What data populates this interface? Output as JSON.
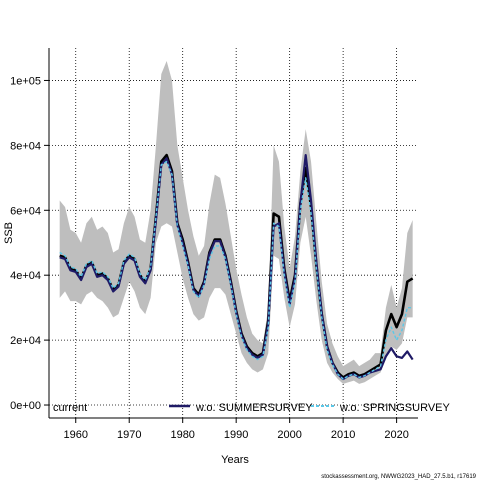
{
  "chart_data": {
    "type": "line",
    "xlabel": "Years",
    "ylabel": "SSB",
    "xlim": [
      1955,
      2024
    ],
    "ylim": [
      -4000,
      110000
    ],
    "x_ticks": [
      1960,
      1970,
      1980,
      1990,
      2000,
      2010,
      2020
    ],
    "x_tick_labels": [
      "1960",
      "1970",
      "1980",
      "1990",
      "2000",
      "2010",
      "2020"
    ],
    "y_ticks": [
      0,
      20000,
      40000,
      60000,
      80000,
      100000
    ],
    "y_tick_labels": [
      "0e+00",
      "2e+04",
      "4e+04",
      "6e+04",
      "8e+04",
      "1e+05"
    ],
    "grid": "dotted",
    "legend_position": "bottom",
    "source_note": "stockassessment.org, NWWG2023_HAD_27.5.b1, r17619",
    "band": {
      "fill": "#bebebe",
      "x": [
        1957,
        1958,
        1959,
        1960,
        1961,
        1962,
        1963,
        1964,
        1965,
        1966,
        1967,
        1968,
        1969,
        1970,
        1971,
        1972,
        1973,
        1974,
        1975,
        1976,
        1977,
        1978,
        1979,
        1980,
        1981,
        1982,
        1983,
        1984,
        1985,
        1986,
        1987,
        1988,
        1989,
        1990,
        1991,
        1992,
        1993,
        1994,
        1995,
        1996,
        1997,
        1998,
        1999,
        2000,
        2001,
        2002,
        2003,
        2004,
        2005,
        2006,
        2007,
        2008,
        2009,
        2010,
        2011,
        2012,
        2013,
        2014,
        2015,
        2016,
        2017,
        2018,
        2019,
        2020,
        2021,
        2022,
        2023
      ],
      "upper": [
        63000,
        61000,
        54000,
        53000,
        50000,
        56000,
        58000,
        54000,
        55000,
        53000,
        47000,
        48000,
        56000,
        61000,
        58000,
        51000,
        50000,
        60000,
        80000,
        102000,
        106000,
        100000,
        80000,
        70000,
        60000,
        52000,
        46000,
        49000,
        62000,
        71000,
        70000,
        62000,
        52000,
        42000,
        34000,
        27000,
        22000,
        20000,
        19000,
        30000,
        80000,
        75000,
        55000,
        42000,
        52000,
        72000,
        85000,
        75000,
        56000,
        38000,
        25000,
        19000,
        15000,
        12000,
        13000,
        14000,
        12000,
        13000,
        14000,
        16000,
        16000,
        30000,
        37000,
        30000,
        36000,
        53000,
        57000
      ],
      "lower": [
        33000,
        35000,
        32000,
        32000,
        31000,
        34000,
        35000,
        33000,
        32000,
        30000,
        27000,
        28000,
        33000,
        38000,
        35000,
        30000,
        28000,
        33000,
        50000,
        55000,
        56000,
        55000,
        47000,
        39000,
        33000,
        28000,
        26000,
        27000,
        33000,
        36000,
        36000,
        34000,
        28000,
        22000,
        16000,
        13000,
        11000,
        10000,
        11000,
        16000,
        46000,
        45000,
        33000,
        24000,
        31000,
        50000,
        58000,
        46000,
        32000,
        20000,
        13000,
        10000,
        8000,
        6500,
        7000,
        7500,
        6500,
        7000,
        8000,
        9000,
        10000,
        15000,
        18000,
        17000,
        19000,
        27000,
        27000
      ]
    },
    "series": [
      {
        "name": "current",
        "color": "#000000",
        "style": "solid",
        "x": [
          1957,
          1958,
          1959,
          1960,
          1961,
          1962,
          1963,
          1964,
          1965,
          1966,
          1967,
          1968,
          1969,
          1970,
          1971,
          1972,
          1973,
          1974,
          1975,
          1976,
          1977,
          1978,
          1979,
          1980,
          1981,
          1982,
          1983,
          1984,
          1985,
          1986,
          1987,
          1988,
          1989,
          1990,
          1991,
          1992,
          1993,
          1994,
          1995,
          1996,
          1997,
          1998,
          1999,
          2000,
          2001,
          2002,
          2003,
          2004,
          2005,
          2006,
          2007,
          2008,
          2009,
          2010,
          2011,
          2012,
          2013,
          2014,
          2015,
          2016,
          2017,
          2018,
          2019,
          2020,
          2021,
          2022,
          2023
        ],
        "values": [
          46000,
          45500,
          42000,
          41500,
          39000,
          43000,
          44000,
          40000,
          40500,
          39000,
          35500,
          37000,
          44000,
          46000,
          45000,
          40000,
          38000,
          42000,
          58000,
          75000,
          77000,
          72000,
          56000,
          51000,
          44000,
          36000,
          34000,
          38000,
          47000,
          51000,
          51000,
          46000,
          38000,
          29000,
          22000,
          18000,
          16000,
          15000,
          16000,
          26000,
          59000,
          58000,
          42000,
          32000,
          40000,
          62000,
          73000,
          61000,
          43000,
          28000,
          18000,
          13000,
          10000,
          8500,
          9500,
          10000,
          9000,
          9500,
          10500,
          11500,
          12500,
          23000,
          28000,
          24000,
          28000,
          38000,
          39000
        ]
      },
      {
        "name": "w.o. SUMMERSURVEY",
        "color": "#1f1a66",
        "style": "solid",
        "x": [
          1957,
          1958,
          1959,
          1960,
          1961,
          1962,
          1963,
          1964,
          1965,
          1966,
          1967,
          1968,
          1969,
          1970,
          1971,
          1972,
          1973,
          1974,
          1975,
          1976,
          1977,
          1978,
          1979,
          1980,
          1981,
          1982,
          1983,
          1984,
          1985,
          1986,
          1987,
          1988,
          1989,
          1990,
          1991,
          1992,
          1993,
          1994,
          1995,
          1996,
          1997,
          1998,
          1999,
          2000,
          2001,
          2002,
          2003,
          2004,
          2005,
          2006,
          2007,
          2008,
          2009,
          2010,
          2011,
          2012,
          2013,
          2014,
          2015,
          2016,
          2017,
          2018,
          2019,
          2020,
          2021,
          2022,
          2023
        ],
        "values": [
          45500,
          45000,
          41500,
          41000,
          38500,
          42500,
          43500,
          39500,
          40000,
          38500,
          35000,
          36500,
          43500,
          45500,
          44500,
          39500,
          37500,
          41500,
          57000,
          74000,
          76000,
          71000,
          55500,
          50000,
          43500,
          35500,
          33500,
          37500,
          46500,
          50500,
          50500,
          45500,
          37500,
          28500,
          21500,
          17500,
          15500,
          14500,
          15500,
          25000,
          55000,
          56000,
          41000,
          31000,
          39000,
          62000,
          77000,
          63000,
          44000,
          28000,
          18000,
          13000,
          9500,
          8000,
          9000,
          9500,
          8500,
          9000,
          10000,
          10500,
          11000,
          15000,
          17500,
          15000,
          14500,
          16500,
          14000
        ]
      },
      {
        "name": "w.o. SPRINGSURVEY",
        "color": "#5ac8e8",
        "style": "dashed",
        "x": [
          1957,
          1958,
          1959,
          1960,
          1961,
          1962,
          1963,
          1964,
          1965,
          1966,
          1967,
          1968,
          1969,
          1970,
          1971,
          1972,
          1973,
          1974,
          1975,
          1976,
          1977,
          1978,
          1979,
          1980,
          1981,
          1982,
          1983,
          1984,
          1985,
          1986,
          1987,
          1988,
          1989,
          1990,
          1991,
          1992,
          1993,
          1994,
          1995,
          1996,
          1997,
          1998,
          1999,
          2000,
          2001,
          2002,
          2003,
          2004,
          2005,
          2006,
          2007,
          2008,
          2009,
          2010,
          2011,
          2012,
          2013,
          2014,
          2015,
          2016,
          2017,
          2018,
          2019,
          2020,
          2021,
          2022,
          2023
        ],
        "values": [
          47000,
          46000,
          42500,
          42000,
          39500,
          43500,
          44500,
          40500,
          41000,
          39500,
          36000,
          37500,
          44500,
          46500,
          45500,
          40500,
          38500,
          42500,
          58000,
          74000,
          75000,
          71000,
          55000,
          49000,
          43000,
          35000,
          33000,
          37000,
          45000,
          49000,
          49000,
          45000,
          37000,
          28000,
          21000,
          17000,
          15000,
          14000,
          15000,
          24000,
          56000,
          55000,
          40000,
          30000,
          38000,
          60000,
          70000,
          59000,
          42000,
          27000,
          17000,
          12500,
          9500,
          8000,
          9000,
          9500,
          8500,
          9000,
          10000,
          11000,
          12000,
          20000,
          24000,
          20000,
          23000,
          30000,
          30000
        ]
      }
    ]
  }
}
